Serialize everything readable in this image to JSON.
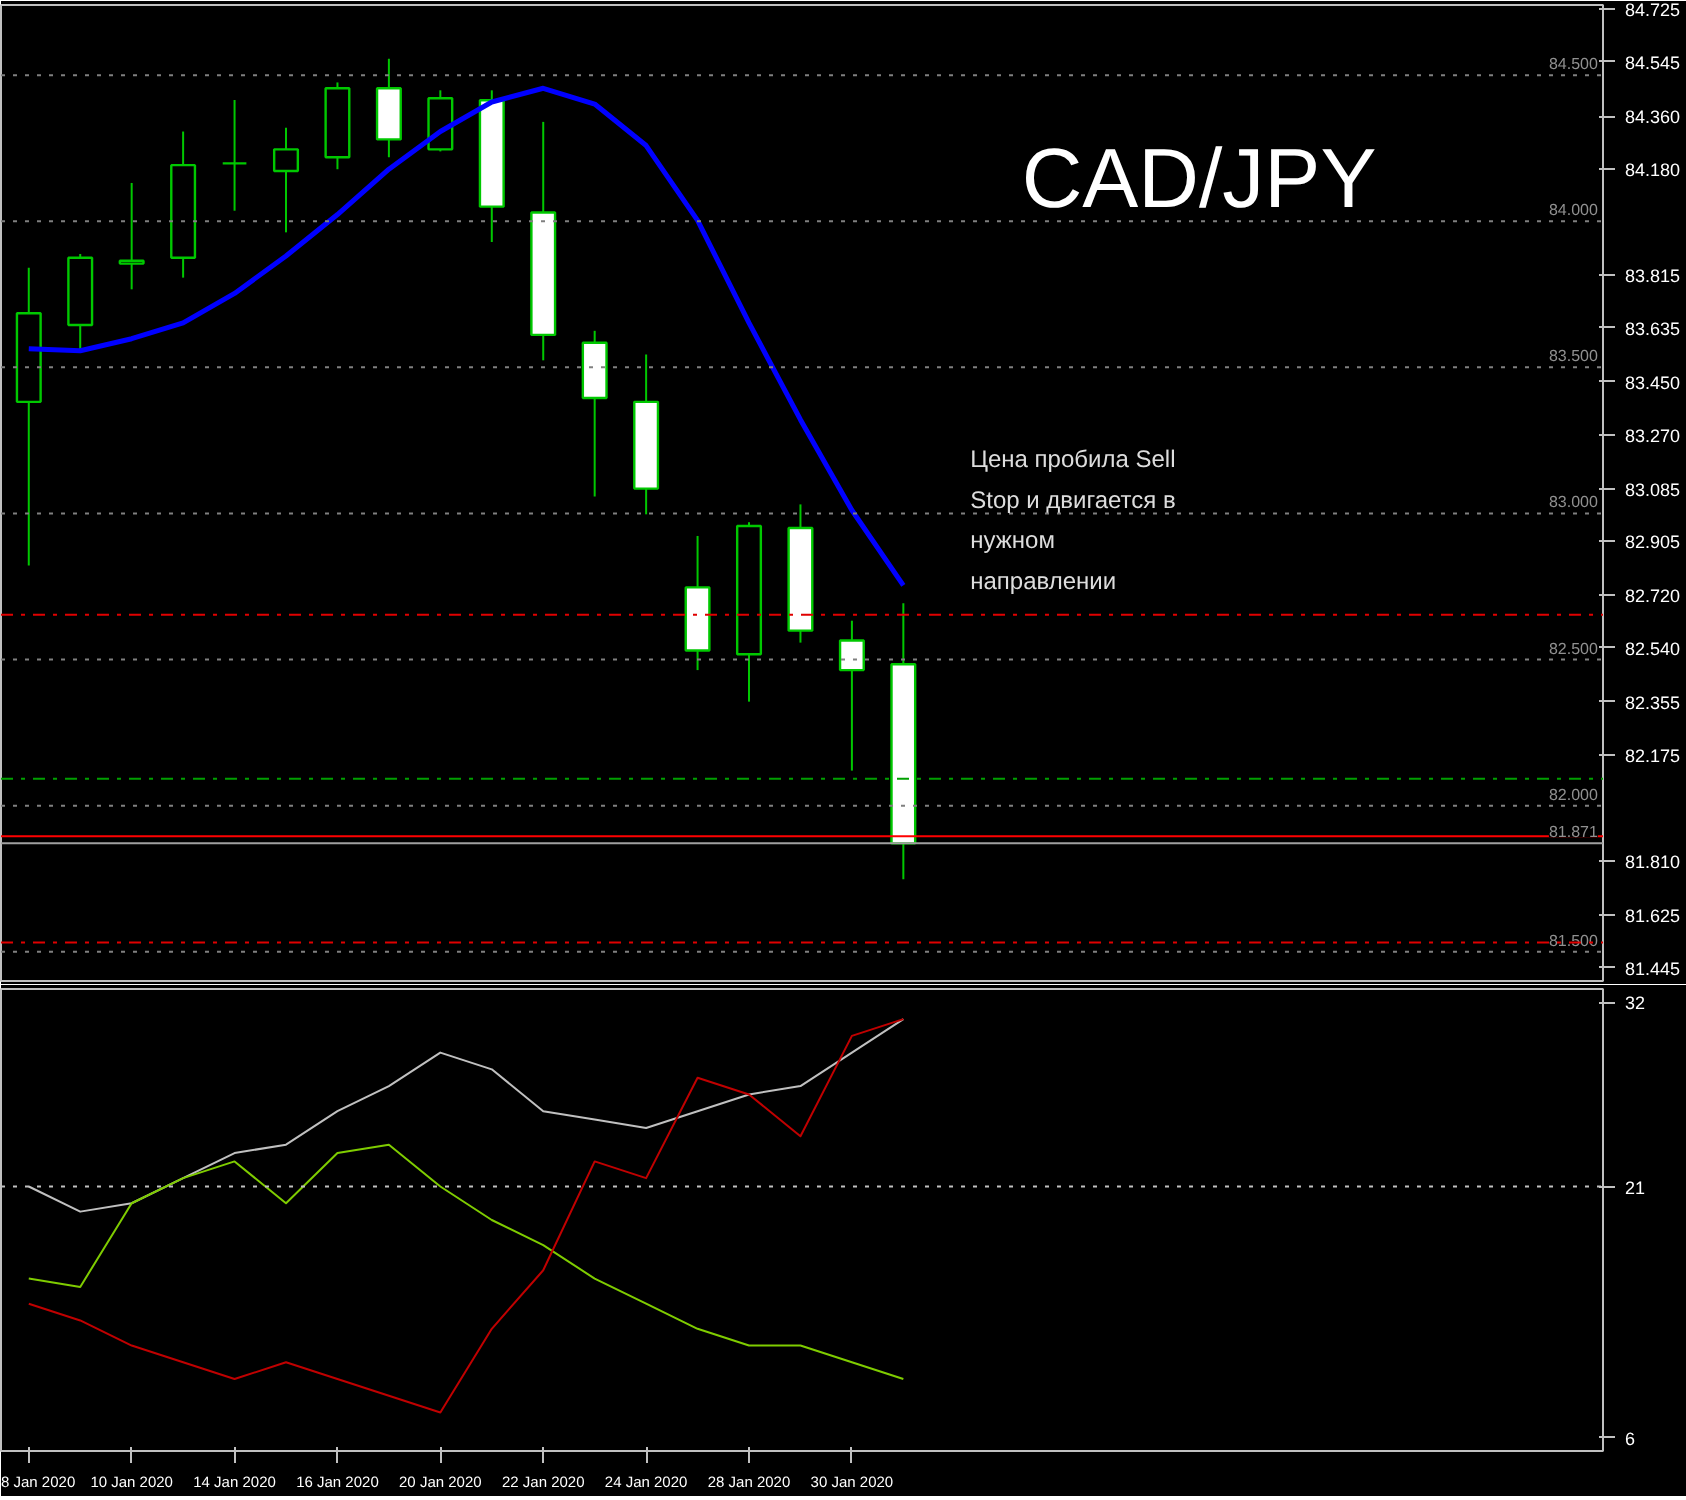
{
  "chart_data": [
    {
      "type": "candlestick",
      "title": "CAD/JPY",
      "tick_labels": "y",
      "categories": [
        null,
        null,
        null,
        null,
        null,
        null,
        null,
        null,
        null,
        null,
        null,
        null,
        null,
        null,
        null,
        null,
        null,
        null
      ],
      "ohlc": [
        [
          83.382,
          83.841,
          82.822,
          83.685
        ],
        [
          83.645,
          83.888,
          83.557,
          83.875
        ],
        [
          83.855,
          84.131,
          83.767,
          83.865
        ],
        [
          83.875,
          84.307,
          83.807,
          84.192
        ],
        [
          84.198,
          84.415,
          84.036,
          84.198
        ],
        [
          84.172,
          84.32,
          83.962,
          84.246
        ],
        [
          84.219,
          84.475,
          84.178,
          84.455
        ],
        [
          84.455,
          84.556,
          84.219,
          84.28
        ],
        [
          84.246,
          84.448,
          84.239,
          84.421
        ],
        [
          84.414,
          84.448,
          83.929,
          84.05
        ],
        [
          84.03,
          84.34,
          83.524,
          83.611
        ],
        [
          83.584,
          83.625,
          83.058,
          83.395
        ],
        [
          83.382,
          83.544,
          82.997,
          83.085
        ],
        [
          82.747,
          82.923,
          82.464,
          82.531
        ],
        [
          82.518,
          82.97,
          82.356,
          82.957
        ],
        [
          82.95,
          83.031,
          82.558,
          82.599
        ],
        [
          82.565,
          82.633,
          82.12,
          82.464
        ],
        [
          82.484,
          82.693,
          81.748,
          81.871
        ]
      ],
      "color": "#00c800",
      "series": [
        {
          "type": "line",
          "color": "#0000ff",
          "values": [
            83.564,
            83.557,
            83.598,
            83.652,
            83.753,
            83.881,
            84.023,
            84.178,
            84.307,
            84.408,
            84.455,
            84.401,
            84.259,
            84.003,
            83.652,
            83.321,
            83.011,
            82.754
          ]
        }
      ],
      "ylim": [
        81.4,
        84.74
      ],
      "yticks": [
        81.445,
        81.625,
        {
          "value": 81.81,
          "label": "81.810"
        },
        82.175,
        82.355,
        {
          "value": 82.54,
          "label": "82.540"
        },
        {
          "value": 82.72,
          "label": "82.720"
        },
        82.905,
        83.085,
        {
          "value": 83.27,
          "label": "83.270"
        },
        {
          "value": 83.45,
          "label": "83.450"
        },
        83.635,
        83.815,
        {
          "value": 84.18,
          "label": "84.180"
        },
        {
          "value": 84.36,
          "label": "84.360"
        },
        84.545,
        84.725
      ],
      "ref_lines": [
        {
          "axis": "y",
          "value": 84.5,
          "label": "84.500",
          "color": "#808080",
          "line_style": "dotted"
        },
        {
          "axis": "y",
          "value": 84.0,
          "label": "84.000",
          "color": "#808080",
          "line_style": "dotted"
        },
        {
          "axis": "y",
          "value": 83.5,
          "label": "83.500",
          "color": "#808080",
          "line_style": "dotted"
        },
        {
          "axis": "y",
          "value": 83.0,
          "label": "83.000",
          "color": "#808080",
          "line_style": "dotted"
        },
        {
          "axis": "y",
          "value": 82.5,
          "label": "82.500",
          "color": "#808080",
          "line_style": "dotted"
        },
        {
          "axis": "y",
          "value": 82.0,
          "label": "82.000",
          "color": "#808080",
          "line_style": "dotted"
        },
        {
          "axis": "y",
          "value": 81.5,
          "label": "81.500",
          "color": "#808080",
          "line_style": "dotted"
        },
        {
          "axis": "y",
          "value": 82.653,
          "color": "#e00000",
          "line_style": "dashdot"
        },
        {
          "axis": "y",
          "value": 82.092,
          "color": "#00a000",
          "line_style": "dashdot"
        },
        {
          "axis": "y",
          "value": 81.532,
          "color": "#e00000",
          "line_style": "dashdot"
        },
        {
          "axis": "y",
          "value": 81.895,
          "color": "#ff0000",
          "line_style": "solid"
        },
        {
          "axis": "y",
          "value": 81.871,
          "label": "81.871",
          "color": "#a0a0a0",
          "line_style": "solid"
        }
      ],
      "annotations": [
        "Цена пробила Sell\nStop и двигается в\nнужном\nнаправлении"
      ],
      "grid": false
    },
    {
      "type": "line",
      "categories": [
        "8 Jan 2020",
        null,
        "10 Jan 2020",
        null,
        "14 Jan 2020",
        null,
        "16 Jan 2020",
        null,
        "20 Jan 2020",
        null,
        "22 Jan 2020",
        null,
        "24 Jan 2020",
        null,
        "28 Jan 2020",
        null,
        "30 Jan 2020",
        null
      ],
      "series": [
        {
          "color": "#c0c0c0",
          "values": [
            21,
            19.5,
            20,
            21.5,
            23,
            23.5,
            25.5,
            27,
            29,
            28,
            25.5,
            25,
            24.5,
            25.5,
            26.5,
            27,
            29,
            31
          ]
        },
        {
          "color": "#7fcc00",
          "values": [
            15.5,
            15,
            20,
            21.5,
            22.5,
            20,
            23,
            23.5,
            21,
            19,
            17.5,
            15.5,
            14,
            12.5,
            11.5,
            11.5,
            10.5,
            9.5
          ]
        },
        {
          "color": "#c00000",
          "values": [
            14,
            13,
            11.5,
            10.5,
            9.5,
            10.5,
            9.5,
            8.5,
            7.5,
            12.5,
            16,
            22.5,
            21.5,
            27.5,
            26.5,
            24,
            30,
            31
          ]
        }
      ],
      "ylim": [
        5.2,
        32.8
      ],
      "yticks": [
        6,
        21,
        32
      ],
      "ref_lines": [
        {
          "axis": "y",
          "value": 21,
          "color": "#c0c0c0",
          "line_style": "dotted"
        }
      ],
      "grid": false
    }
  ]
}
